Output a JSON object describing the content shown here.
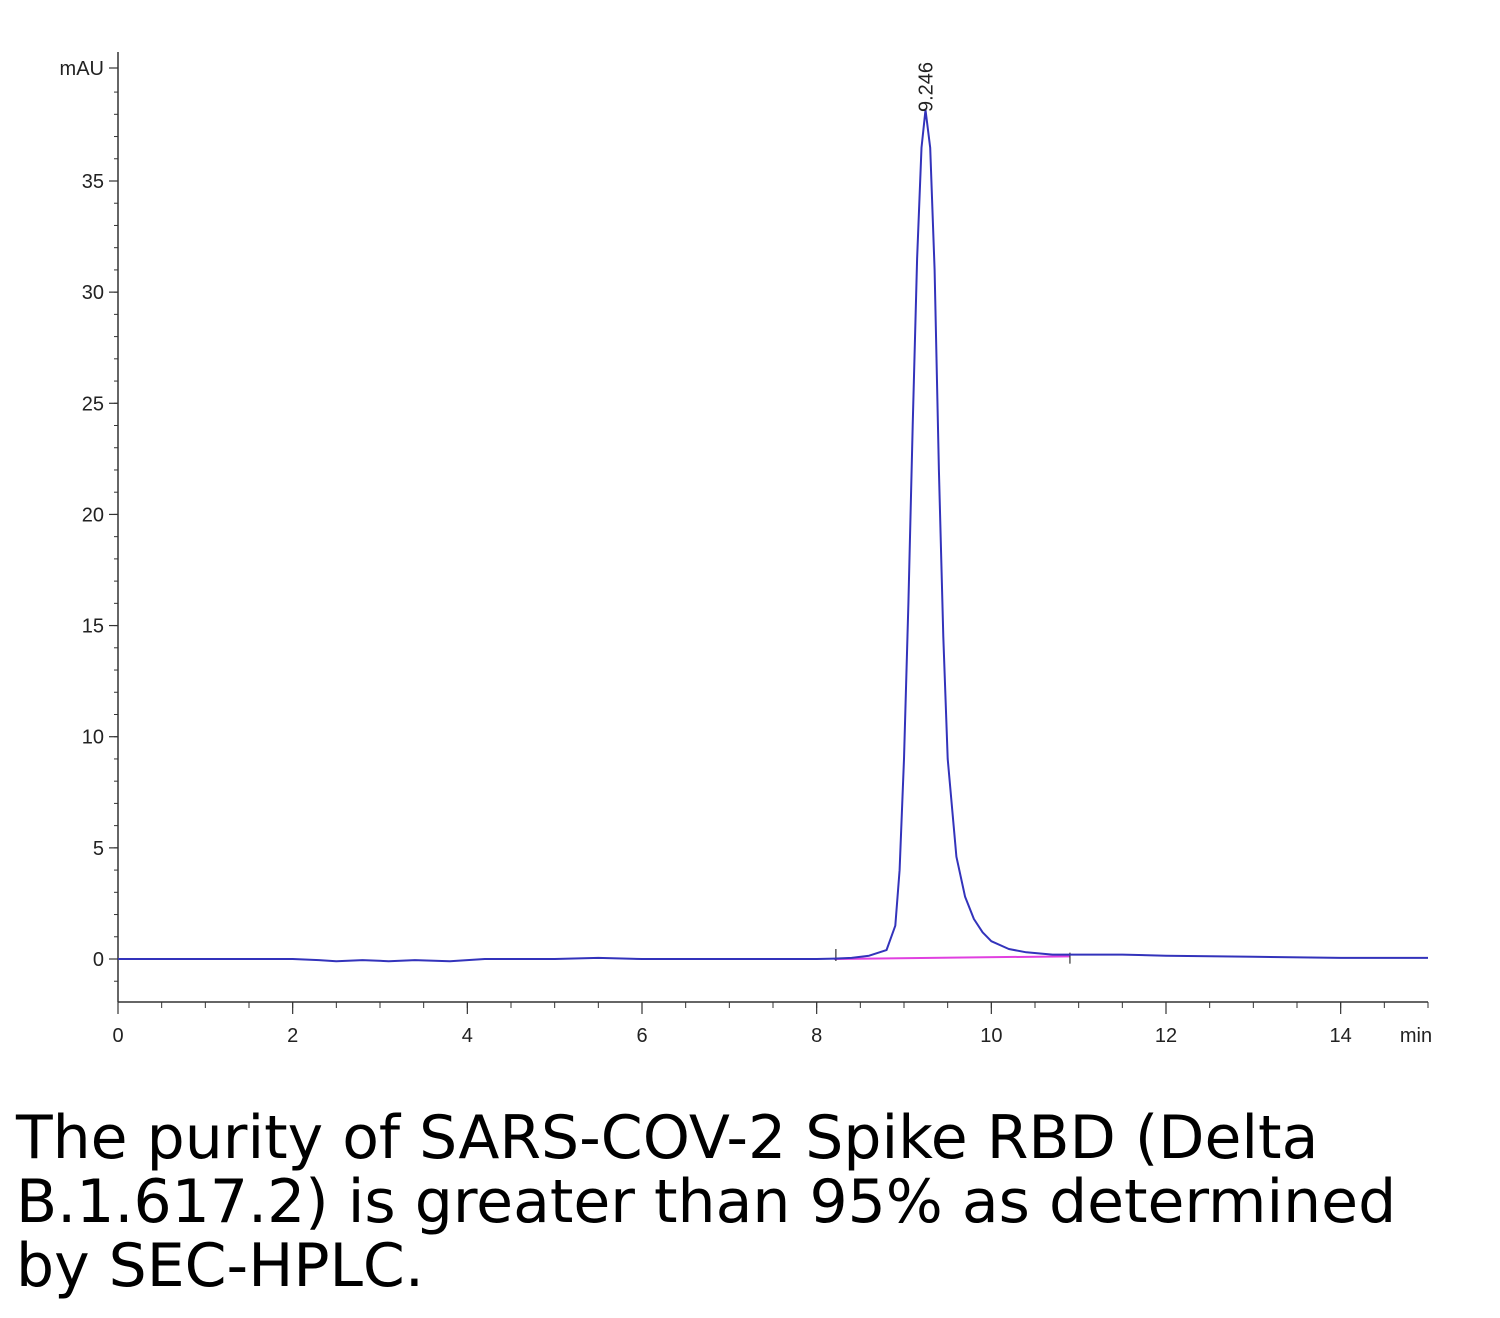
{
  "chart_data": {
    "type": "line",
    "y_unit_label": "mAU",
    "x_unit_label": "min",
    "xlim": [
      0,
      15
    ],
    "ylim": [
      -2,
      40
    ],
    "x_ticks": [
      0,
      2,
      4,
      6,
      8,
      10,
      12,
      14
    ],
    "x_tick_labels": [
      "0",
      "2",
      "4",
      "6",
      "8",
      "10",
      "12",
      "14"
    ],
    "y_ticks": [
      0,
      5,
      10,
      15,
      20,
      25,
      30,
      35
    ],
    "y_tick_labels": [
      "0",
      "5",
      "10",
      "15",
      "20",
      "25",
      "30",
      "35"
    ],
    "grid": false,
    "series": [
      {
        "color": "#3333bb",
        "x": [
          0,
          2,
          2.3,
          2.5,
          2.8,
          3.1,
          3.4,
          3.8,
          4.2,
          5,
          5.5,
          6,
          7,
          8,
          8.2,
          8.4,
          8.6,
          8.8,
          8.9,
          8.95,
          9.0,
          9.05,
          9.1,
          9.15,
          9.2,
          9.246,
          9.3,
          9.35,
          9.4,
          9.45,
          9.5,
          9.6,
          9.7,
          9.8,
          9.9,
          10.0,
          10.2,
          10.4,
          10.7,
          11,
          11.5,
          12,
          13,
          14,
          14.5,
          15
        ],
        "y": [
          0.0,
          0.0,
          -0.05,
          -0.1,
          -0.05,
          -0.1,
          -0.05,
          -0.1,
          0.0,
          0.0,
          0.05,
          0.0,
          0.0,
          0.0,
          0.02,
          0.05,
          0.15,
          0.4,
          1.5,
          4.0,
          9.0,
          16.0,
          24.0,
          31.5,
          36.5,
          38.2,
          36.5,
          31.0,
          22.0,
          14.5,
          9.0,
          4.6,
          2.8,
          1.8,
          1.2,
          0.8,
          0.45,
          0.3,
          0.2,
          0.2,
          0.2,
          0.15,
          0.1,
          0.05,
          0.05,
          0.05
        ]
      }
    ],
    "baseline": {
      "color": "#e040e0",
      "x": [
        8.2,
        10.9
      ],
      "y": [
        0.0,
        0.12
      ]
    },
    "peak_annotations": [
      {
        "x": 9.246,
        "label": "9.246"
      }
    ],
    "colors": {
      "axis": "#333333",
      "trace": "#3333bb",
      "baseline": "#e040e0"
    }
  },
  "caption": {
    "lines": [
      "The purity of SARS-COV-2 Spike RBD (Delta",
      "B.1.617.2) is greater than 95% as determined",
      "by SEC-HPLC."
    ]
  }
}
